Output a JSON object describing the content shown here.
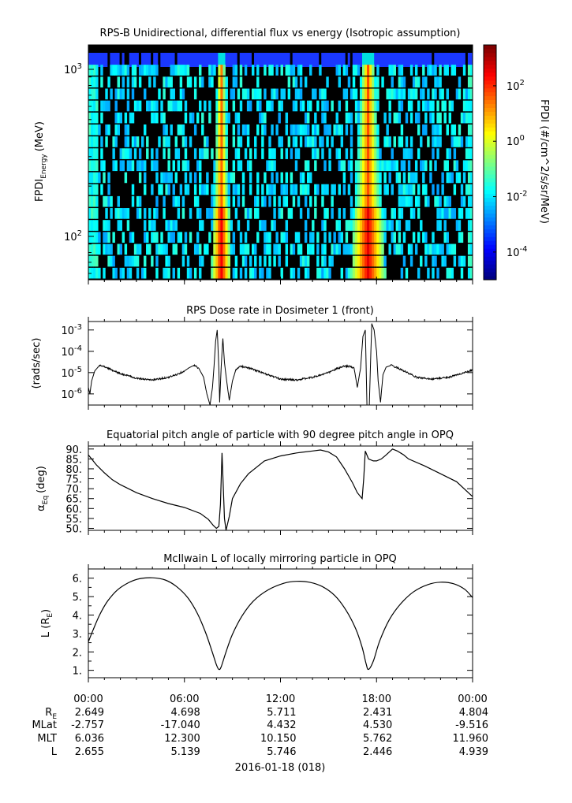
{
  "chart_data": [
    {
      "type": "heatmap",
      "title": "RPS-B  Unidirectional, differential flux vs energy (Isotropic assumption)",
      "ylabel_main": "FPDI",
      "ylabel_sub": "Energy",
      "ylabel_unit": "(MeV)",
      "ylog": true,
      "ylim": [
        55,
        1400
      ],
      "yticks": [
        {
          "value": 100,
          "label": "10",
          "exp": "2"
        },
        {
          "value": 1000,
          "label": "10",
          "exp": "3"
        }
      ],
      "colorbar": {
        "label": "FPDI (#/cm^2/s/sr/MeV)",
        "log": true,
        "range": [
          1e-05,
          3000
        ],
        "ticks": [
          {
            "value": 100,
            "label": "10",
            "exp": "2"
          },
          {
            "value": 1,
            "label": "10",
            "exp": "0"
          },
          {
            "value": 0.01,
            "label": "10",
            "exp": "-2"
          },
          {
            "value": 0.0001,
            "label": "10",
            "exp": "-4"
          }
        ]
      },
      "bands_hours": [
        [
          8.0,
          8.45
        ],
        [
          17.0,
          17.8
        ]
      ],
      "top_band_color": "#1a38ff"
    },
    {
      "type": "line",
      "title": "RPS  Dose rate in Dosimeter 1 (front)",
      "ylabel": "(rads/sec)",
      "ylog": true,
      "ylim": [
        3e-07,
        0.0025
      ],
      "yticks": [
        {
          "value": 1e-06,
          "label": "10",
          "exp": "-6"
        },
        {
          "value": 1e-05,
          "label": "10",
          "exp": "-5"
        },
        {
          "value": 0.0001,
          "label": "10",
          "exp": "-4"
        },
        {
          "value": 0.001,
          "label": "10",
          "exp": "-3"
        }
      ],
      "x_hours": [
        0,
        0.1,
        0.2,
        0.4,
        0.7,
        1,
        1.5,
        2,
        3,
        4,
        5,
        5.5,
        6,
        6.3,
        6.6,
        6.9,
        7.2,
        7.4,
        7.6,
        7.75,
        7.85,
        7.95,
        8.05,
        8.15,
        8.2,
        8.3,
        8.4,
        8.5,
        8.6,
        8.8,
        9.0,
        9.2,
        9.5,
        10,
        11,
        12,
        13,
        14,
        15,
        15.5,
        16,
        16.3,
        16.6,
        16.8,
        17.0,
        17.15,
        17.3,
        17.4,
        17.55,
        17.7,
        17.85,
        18.0,
        18.1,
        18.25,
        18.4,
        18.6,
        18.9,
        19.3,
        19.8,
        20.5,
        21.5,
        22.5,
        23.3,
        24
      ],
      "values": [
        2e-06,
        1e-06,
        4e-06,
        1.2e-05,
        2.2e-05,
        1.9e-05,
        1.3e-05,
        9e-06,
        5.5e-06,
        4.5e-06,
        6e-06,
        8e-06,
        1.2e-05,
        1.7e-05,
        2.2e-05,
        1.6e-05,
        6e-06,
        1e-06,
        3e-07,
        2e-06,
        2e-05,
        0.0003,
        0.001,
        1.5e-05,
        4e-07,
        2e-05,
        0.0004,
        3e-05,
        7e-06,
        5e-07,
        4e-06,
        1.3e-05,
        2e-05,
        1.7e-05,
        9e-06,
        5e-06,
        4.5e-06,
        6e-06,
        1e-05,
        1.5e-05,
        2e-05,
        2e-05,
        1.6e-05,
        2e-06,
        1.6e-05,
        0.0005,
        0.001,
        3e-07,
        3e-07,
        0.002,
        0.001,
        0.0001,
        4e-06,
        4e-07,
        8e-06,
        1.8e-05,
        2.2e-05,
        1.7e-05,
        1.1e-05,
        6e-06,
        5e-06,
        6e-06,
        9e-06,
        1.3e-05
      ]
    },
    {
      "type": "line",
      "title": "Equatorial pitch angle of particle with 90 degree pitch angle in OPQ",
      "ylabel_main": "α",
      "ylabel_sub": "Eq",
      "ylabel_unit": "(deg)",
      "ylim": [
        49,
        91.5
      ],
      "yticks": [
        50,
        55,
        60,
        65,
        70,
        75,
        80,
        85,
        90
      ],
      "x_hours": [
        0,
        0.5,
        1,
        1.5,
        2,
        2.5,
        3,
        4,
        5,
        6,
        7,
        7.5,
        7.8,
        8.0,
        8.15,
        8.25,
        8.35,
        8.5,
        8.6,
        8.8,
        9.0,
        9.5,
        10,
        11,
        12,
        13,
        14,
        14.5,
        15,
        15.5,
        16,
        16.5,
        16.8,
        17.1,
        17.2,
        17.3,
        17.5,
        17.8,
        18,
        18.3,
        18.6,
        19,
        19.3,
        19.7,
        20,
        21,
        22,
        23,
        24
      ],
      "values": [
        87,
        82,
        78,
        74.5,
        72,
        70,
        68,
        65,
        62.5,
        60.5,
        57.5,
        54.5,
        51.5,
        50,
        51,
        62,
        88,
        55,
        48,
        56,
        65,
        72.5,
        77.5,
        84,
        86.5,
        88,
        89,
        89.5,
        88.5,
        86,
        80,
        73,
        68,
        65,
        75,
        89,
        85,
        84,
        84,
        85,
        87,
        90,
        89,
        87,
        85,
        81.5,
        77.5,
        73.5,
        66
      ]
    },
    {
      "type": "line",
      "title": "McIlwain L of locally mirroring particle in OPQ",
      "ylabel_main": "L (R",
      "ylabel_sub": "E",
      "ylabel_unit": ")",
      "ylim": [
        0.6,
        6.5
      ],
      "yticks": [
        1,
        2,
        3,
        4,
        5,
        6
      ],
      "x_hours": [
        0,
        0.3,
        0.7,
        1.2,
        1.8,
        2.5,
        3.2,
        4,
        4.8,
        5.5,
        6.2,
        6.8,
        7.3,
        7.7,
        8.0,
        8.15,
        8.3,
        8.6,
        9.0,
        9.6,
        10.3,
        11.2,
        12.2,
        13,
        13.8,
        14.6,
        15.4,
        16.1,
        16.7,
        17.1,
        17.35,
        17.5,
        17.8,
        18.2,
        18.8,
        19.5,
        20.3,
        21.2,
        22,
        22.8,
        23.5,
        24
      ],
      "values": [
        2.55,
        3.2,
        4.0,
        4.75,
        5.35,
        5.75,
        5.97,
        6.02,
        5.9,
        5.55,
        4.95,
        4.1,
        3.1,
        2.1,
        1.3,
        1.05,
        1.2,
        2.0,
        2.95,
        3.95,
        4.75,
        5.35,
        5.72,
        5.83,
        5.78,
        5.55,
        5.05,
        4.25,
        3.25,
        2.25,
        1.35,
        1.05,
        1.5,
        2.6,
        3.75,
        4.6,
        5.25,
        5.65,
        5.78,
        5.7,
        5.4,
        4.95
      ]
    }
  ],
  "xaxis": {
    "range_hours": [
      0,
      24
    ],
    "tick_hours": [
      0,
      6,
      12,
      18,
      24
    ],
    "tick_labels": [
      "00:00",
      "06:00",
      "12:00",
      "18:00",
      "00:00"
    ],
    "date_label": "2016-01-18 (018)"
  },
  "ephemeris": [
    {
      "label": "R",
      "sub": "E",
      "values": [
        "2.649",
        "4.698",
        "5.711",
        "2.431",
        "4.804"
      ]
    },
    {
      "label": "MLat",
      "sub": "",
      "values": [
        "-2.757",
        "-17.040",
        "4.432",
        "4.530",
        "-9.516"
      ]
    },
    {
      "label": "MLT",
      "sub": "",
      "values": [
        "6.036",
        "12.300",
        "10.150",
        "5.762",
        "11.960"
      ]
    },
    {
      "label": "L",
      "sub": "",
      "values": [
        "2.655",
        "5.139",
        "5.746",
        "2.446",
        "4.939"
      ]
    }
  ]
}
